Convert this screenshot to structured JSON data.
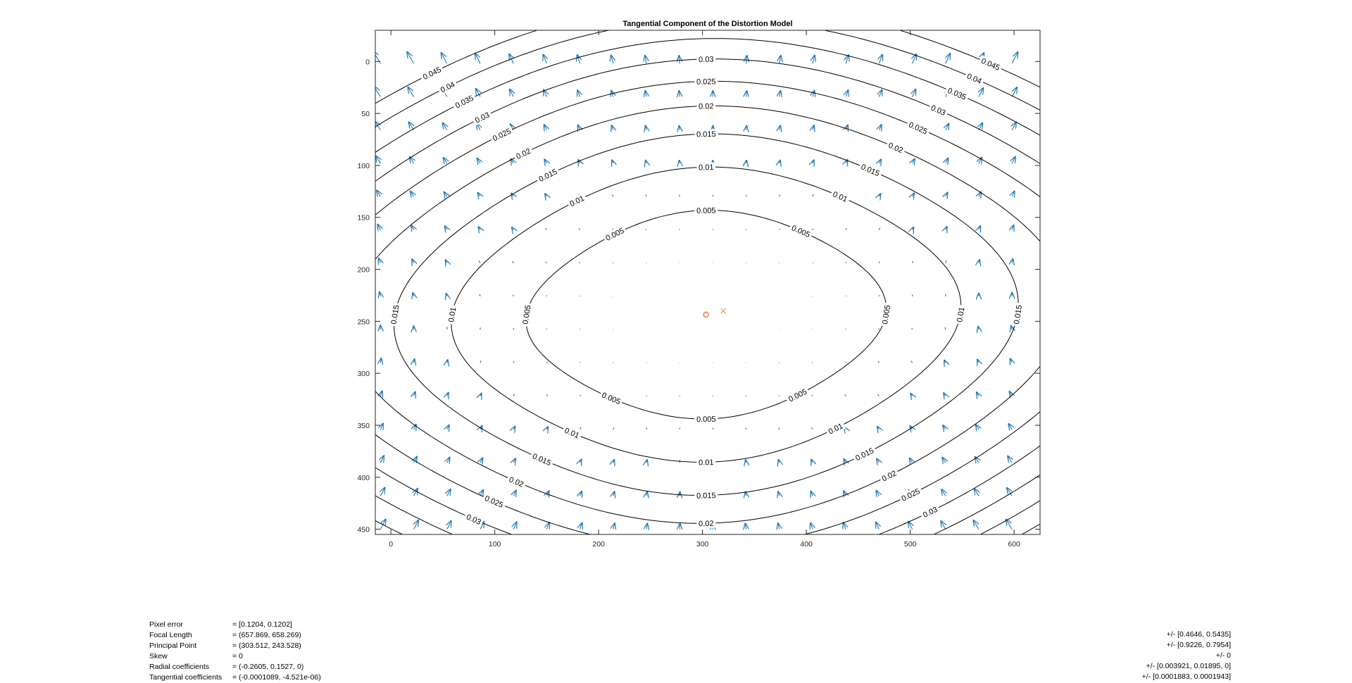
{
  "chart_data": {
    "type": "contour",
    "title": "Tangential Component of the Distortion Model",
    "xlabel": "",
    "ylabel": "",
    "xlim": [
      -15,
      625
    ],
    "ylim": [
      -30,
      455
    ],
    "y_reversed": true,
    "xticks": [
      0,
      100,
      200,
      300,
      400,
      500,
      600
    ],
    "yticks": [
      0,
      50,
      100,
      150,
      200,
      250,
      300,
      350,
      400,
      450
    ],
    "grid": false,
    "principal_point": [
      303.512,
      243.528
    ],
    "image_center": [
      320,
      240
    ],
    "tangential_coefficients": [
      -0.0001089,
      -4.521e-06
    ],
    "focal_length": [
      657.869,
      658.269
    ],
    "contour_levels": [
      0.005,
      0.01,
      0.015,
      0.02,
      0.025,
      0.03,
      0.035,
      0.04,
      0.045
    ],
    "contour_label_text": [
      "0.005",
      "0.01",
      "0.015",
      "0.02",
      "0.025",
      "0.03",
      "0.035",
      "0.04",
      "0.045"
    ],
    "quiver_grid_step": [
      32,
      32
    ],
    "colors": {
      "arrows": "#1f77b4",
      "contours": "#000000",
      "center_marks": "#e69b2c",
      "principal_point_mark": "#d95319"
    }
  },
  "stats": {
    "rows": [
      {
        "name": "Pixel error",
        "value": "= [0.1204, 0.1202]",
        "error": ""
      },
      {
        "name": "Focal Length",
        "value": "= (657.869, 658.269)",
        "error": "+/- [0.4646, 0.5435]"
      },
      {
        "name": "Principal Point",
        "value": "= (303.512, 243.528)",
        "error": "+/- [0.9226, 0.7954]"
      },
      {
        "name": "Skew",
        "value": "= 0",
        "error": "+/- 0"
      },
      {
        "name": "Radial coefficients",
        "value": "= (-0.2605, 0.1527, 0)",
        "error": "+/- [0.003921, 0.01895, 0]"
      },
      {
        "name": "Tangential coefficients",
        "value": "= (-0.0001089, -4.521e-06)",
        "error": "+/- [0.0001883, 0.0001943]"
      }
    ]
  }
}
